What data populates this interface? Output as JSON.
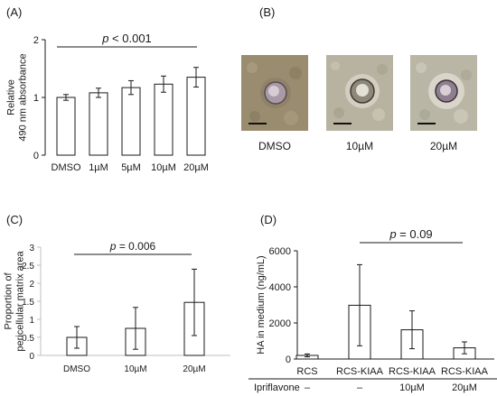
{
  "panels": {
    "A": {
      "label": "(A)",
      "chart_data": {
        "type": "bar",
        "categories": [
          "DMSO",
          "1µM",
          "5µM",
          "10µM",
          "20µM"
        ],
        "values": [
          1.0,
          1.08,
          1.17,
          1.23,
          1.35
        ],
        "errors": [
          0.05,
          0.08,
          0.12,
          0.14,
          0.17
        ],
        "ylabel": "Relative\n490 nm absorbance",
        "ylim": [
          0,
          2
        ],
        "yticks": [
          "0",
          "1",
          "2"
        ],
        "annotation": "p < 0.001",
        "annotation_italic": "p",
        "annotation_rest": " < 0.001"
      }
    },
    "B": {
      "label": "(B)",
      "images": [
        {
          "caption": "DMSO"
        },
        {
          "caption": "10µM"
        },
        {
          "caption": "20µM"
        }
      ]
    },
    "C": {
      "label": "(C)",
      "chart_data": {
        "type": "bar",
        "categories": [
          "DMSO",
          "10µM",
          "20µM"
        ],
        "values": [
          0.5,
          0.75,
          1.47
        ],
        "errors": [
          0.3,
          0.58,
          0.92
        ],
        "ylabel": "Proportion of\npericellular matrix area",
        "ylim": [
          0,
          3
        ],
        "yticks": [
          "0",
          "0.5",
          "1",
          "1.5",
          "2",
          "2.5",
          "3"
        ],
        "annotation": "p = 0.006",
        "annotation_italic": "p",
        "annotation_rest": " = 0.006"
      }
    },
    "D": {
      "label": "(D)",
      "chart_data": {
        "type": "bar",
        "categories": [
          "RCS",
          "RCS-KIAA",
          "RCS-KIAA",
          "RCS-KIAA"
        ],
        "values": [
          200,
          2980,
          1620,
          620
        ],
        "errors": [
          80,
          2250,
          1050,
          330
        ],
        "ylabel": "HA in medium (ng/mL)",
        "ylim": [
          0,
          6000
        ],
        "yticks": [
          "0",
          "2000",
          "4000",
          "6000"
        ],
        "annotation": "p = 0.09",
        "annotation_italic": "p",
        "annotation_rest": " = 0.09",
        "row_label": "Ipriflavone",
        "row_values": [
          "–",
          "–",
          "10µM",
          "20µM"
        ]
      }
    }
  },
  "colors": {
    "bar_fill": "#ffffff",
    "stroke": "#1a1a1a",
    "grid_c": "#d9d9d9"
  }
}
